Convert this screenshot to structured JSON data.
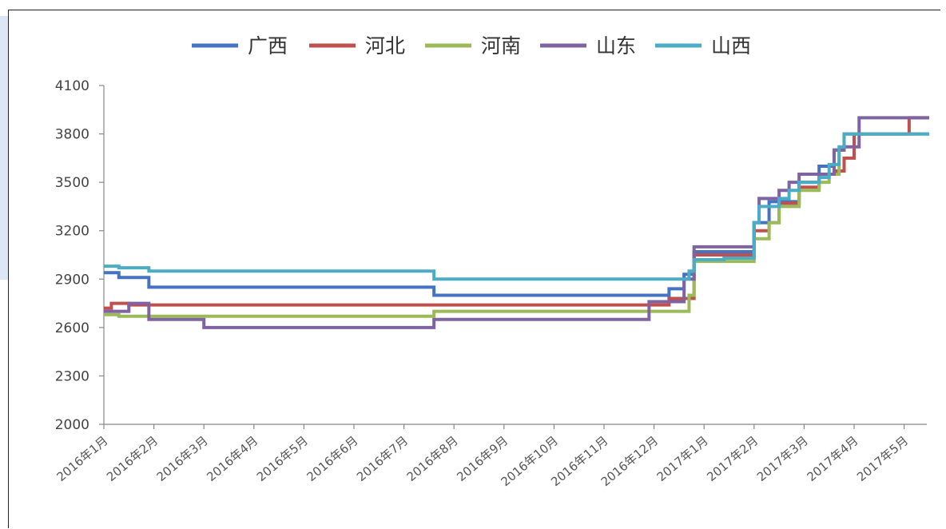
{
  "chart_data": {
    "type": "line",
    "step": true,
    "ylim": [
      2000,
      4100
    ],
    "yticks": [
      "4100",
      "3800",
      "3500",
      "3200",
      "2900",
      "2600",
      "2300",
      "2000"
    ],
    "categories": [
      "2016年1月",
      "2016年2月",
      "2016年3月",
      "2016年4月",
      "2016年5月",
      "2016年6月",
      "2016年7月",
      "2016年8月",
      "2016年9月",
      "2016年10月",
      "2016年11月",
      "2016年12月",
      "2017年1月",
      "2017年2月",
      "2017年3月",
      "2017年4月",
      "2017年5月"
    ],
    "xlim": [
      0,
      16.5
    ],
    "legend_position": "top",
    "grid": false,
    "series": [
      {
        "name": "广西",
        "color": "#4472c4",
        "points": [
          [
            0,
            2940
          ],
          [
            0.3,
            2910
          ],
          [
            0.9,
            2850
          ],
          [
            6.6,
            2800
          ],
          [
            11.3,
            2840
          ],
          [
            11.6,
            2930
          ],
          [
            11.8,
            3070
          ],
          [
            12.4,
            3070
          ],
          [
            13.0,
            3250
          ],
          [
            13.3,
            3380
          ],
          [
            13.9,
            3500
          ],
          [
            14.3,
            3600
          ],
          [
            14.6,
            3700
          ],
          [
            14.8,
            3800
          ],
          [
            16.5,
            3800
          ]
        ]
      },
      {
        "name": "河北",
        "color": "#c0504d",
        "points": [
          [
            0,
            2720
          ],
          [
            0.15,
            2750
          ],
          [
            0.5,
            2740
          ],
          [
            11.3,
            2780
          ],
          [
            11.7,
            2780
          ],
          [
            11.8,
            3050
          ],
          [
            12.4,
            3050
          ],
          [
            13.0,
            3200
          ],
          [
            13.3,
            3250
          ],
          [
            13.5,
            3370
          ],
          [
            13.9,
            3470
          ],
          [
            14.3,
            3550
          ],
          [
            14.6,
            3570
          ],
          [
            14.8,
            3650
          ],
          [
            15.0,
            3800
          ],
          [
            16.1,
            3800
          ],
          [
            16.1,
            3900
          ],
          [
            16.5,
            3900
          ]
        ]
      },
      {
        "name": "河南",
        "color": "#9bbb59",
        "points": [
          [
            0,
            2680
          ],
          [
            0.3,
            2670
          ],
          [
            6.6,
            2700
          ],
          [
            11.3,
            2700
          ],
          [
            11.7,
            2800
          ],
          [
            11.8,
            3010
          ],
          [
            12.4,
            3010
          ],
          [
            13.0,
            3150
          ],
          [
            13.3,
            3250
          ],
          [
            13.5,
            3350
          ],
          [
            13.9,
            3450
          ],
          [
            14.3,
            3500
          ],
          [
            14.5,
            3550
          ],
          [
            14.7,
            3700
          ],
          [
            14.8,
            3800
          ],
          [
            16.5,
            3800
          ]
        ]
      },
      {
        "name": "山东",
        "color": "#8064a2",
        "points": [
          [
            0,
            2700
          ],
          [
            0.5,
            2750
          ],
          [
            0.9,
            2650
          ],
          [
            2.0,
            2600
          ],
          [
            6.6,
            2650
          ],
          [
            10.9,
            2650
          ],
          [
            10.9,
            2760
          ],
          [
            11.6,
            2900
          ],
          [
            11.8,
            3100
          ],
          [
            12.4,
            3100
          ],
          [
            13.0,
            3250
          ],
          [
            13.1,
            3400
          ],
          [
            13.5,
            3450
          ],
          [
            13.7,
            3500
          ],
          [
            13.9,
            3550
          ],
          [
            14.6,
            3700
          ],
          [
            14.8,
            3720
          ],
          [
            15.1,
            3900
          ],
          [
            16.5,
            3900
          ]
        ]
      },
      {
        "name": "山西",
        "color": "#4bacc6",
        "points": [
          [
            0,
            2980
          ],
          [
            0.3,
            2970
          ],
          [
            0.9,
            2950
          ],
          [
            6.6,
            2900
          ],
          [
            11.3,
            2900
          ],
          [
            11.7,
            2950
          ],
          [
            11.8,
            3020
          ],
          [
            12.4,
            3030
          ],
          [
            13.0,
            3250
          ],
          [
            13.1,
            3350
          ],
          [
            13.5,
            3400
          ],
          [
            13.7,
            3450
          ],
          [
            13.9,
            3500
          ],
          [
            14.3,
            3530
          ],
          [
            14.5,
            3610
          ],
          [
            14.7,
            3720
          ],
          [
            14.8,
            3800
          ],
          [
            16.5,
            3800
          ]
        ]
      }
    ]
  }
}
